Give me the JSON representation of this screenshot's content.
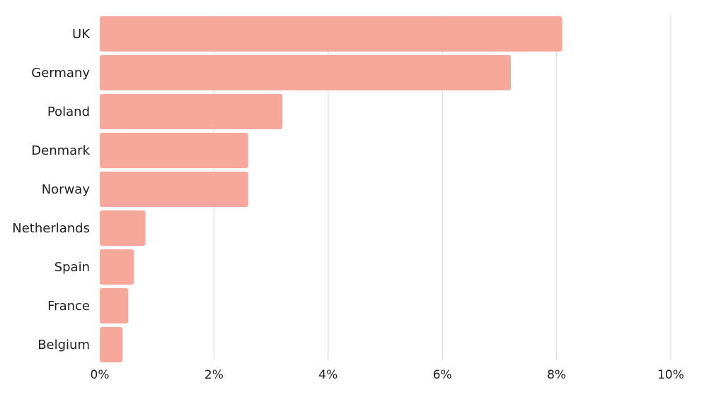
{
  "chart_data": {
    "type": "bar",
    "orientation": "horizontal",
    "categories": [
      "UK",
      "Germany",
      "Poland",
      "Denmark",
      "Norway",
      "Netherlands",
      "Spain",
      "France",
      "Belgium"
    ],
    "values": [
      8.1,
      7.2,
      3.2,
      2.6,
      2.6,
      0.8,
      0.6,
      0.5,
      0.4
    ],
    "value_unit": "%",
    "xlim": [
      0,
      10
    ],
    "x_ticks": [
      0,
      2,
      4,
      6,
      8,
      10
    ],
    "x_tick_labels": [
      "0%",
      "2%",
      "4%",
      "6%",
      "8%",
      "10%"
    ],
    "title": "",
    "xlabel": "",
    "ylabel": "",
    "grid": "vertical",
    "legend": "none",
    "colors": {
      "bar": "#f8a89b",
      "grid": "#d9d9d9",
      "text": "#1f1f1f"
    }
  }
}
